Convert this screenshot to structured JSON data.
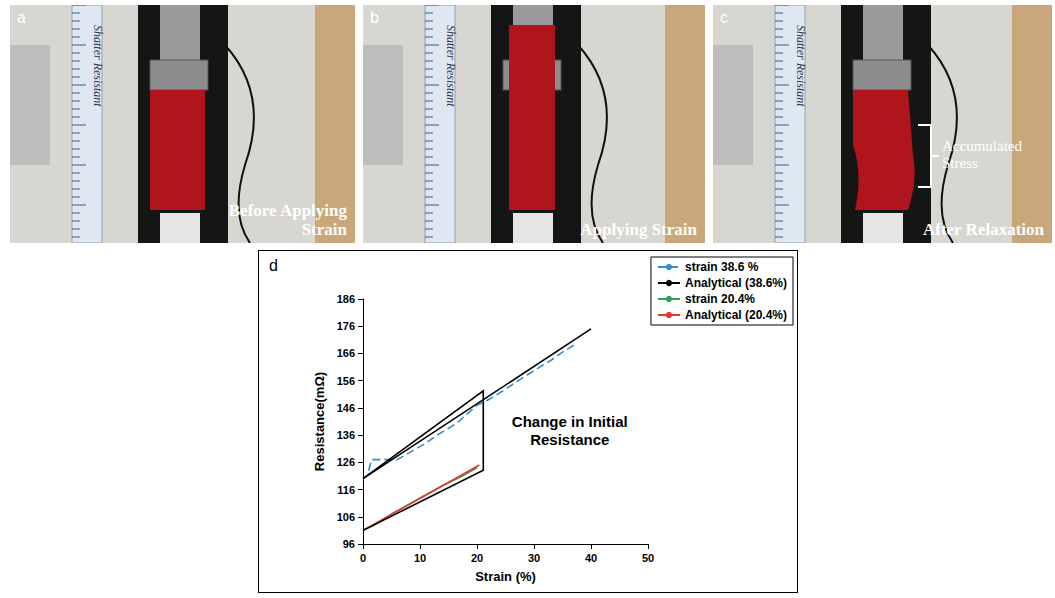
{
  "photos": [
    {
      "letter": "a",
      "caption": "Before Applying Strain",
      "ruler_label": "Shatter Resistant"
    },
    {
      "letter": "b",
      "caption": "Applying Strain",
      "ruler_label": "Shatter Resistant"
    },
    {
      "letter": "c",
      "caption": "After Relaxation",
      "annotation": "Accumulated Stress",
      "ruler_label": "Shatter Resistant"
    }
  ],
  "chart_data": {
    "type": "line",
    "letter": "d",
    "x_label": "Strain (%)",
    "y_label": "Resistance(mΩ)",
    "annotation": "Change in Initial Resistance",
    "xlim": [
      0,
      50
    ],
    "xticks": [
      0,
      10,
      20,
      30,
      40,
      50
    ],
    "ylim": [
      96,
      186
    ],
    "yticks": [
      96,
      106,
      116,
      126,
      136,
      146,
      156,
      166,
      176,
      186
    ],
    "grid": false,
    "legend": "upper right",
    "series": [
      {
        "name": "strain 38.6 %",
        "color": "#2f8fcf",
        "line_style": "dashed",
        "x": [
          1,
          1.5,
          3,
          5,
          6,
          11,
          13,
          15,
          16.5,
          20,
          22,
          24,
          26.5,
          31,
          33,
          35,
          37
        ],
        "values": [
          123,
          127,
          127,
          127,
          127,
          133,
          136,
          138.5,
          140.5,
          147,
          149,
          151.5,
          155,
          161,
          163.5,
          166.5,
          169
        ]
      },
      {
        "name": "Analytical (38.6%)",
        "color": "#000000",
        "line_style": "solid",
        "x": [
          0,
          40
        ],
        "values": [
          120,
          175
        ]
      },
      {
        "name": "strain 20.4%",
        "color": "#2ca05a",
        "line_style": "solid",
        "x": [
          0,
          2,
          5,
          8,
          11,
          14,
          17,
          20
        ],
        "values": [
          101,
          103,
          107,
          110.5,
          114,
          117.5,
          120.5,
          124
        ]
      },
      {
        "name": "Analytical (20.4%)",
        "color": "#e8372b",
        "line_style": "solid",
        "x": [
          0,
          20.4
        ],
        "values": [
          101,
          125
        ]
      }
    ]
  }
}
